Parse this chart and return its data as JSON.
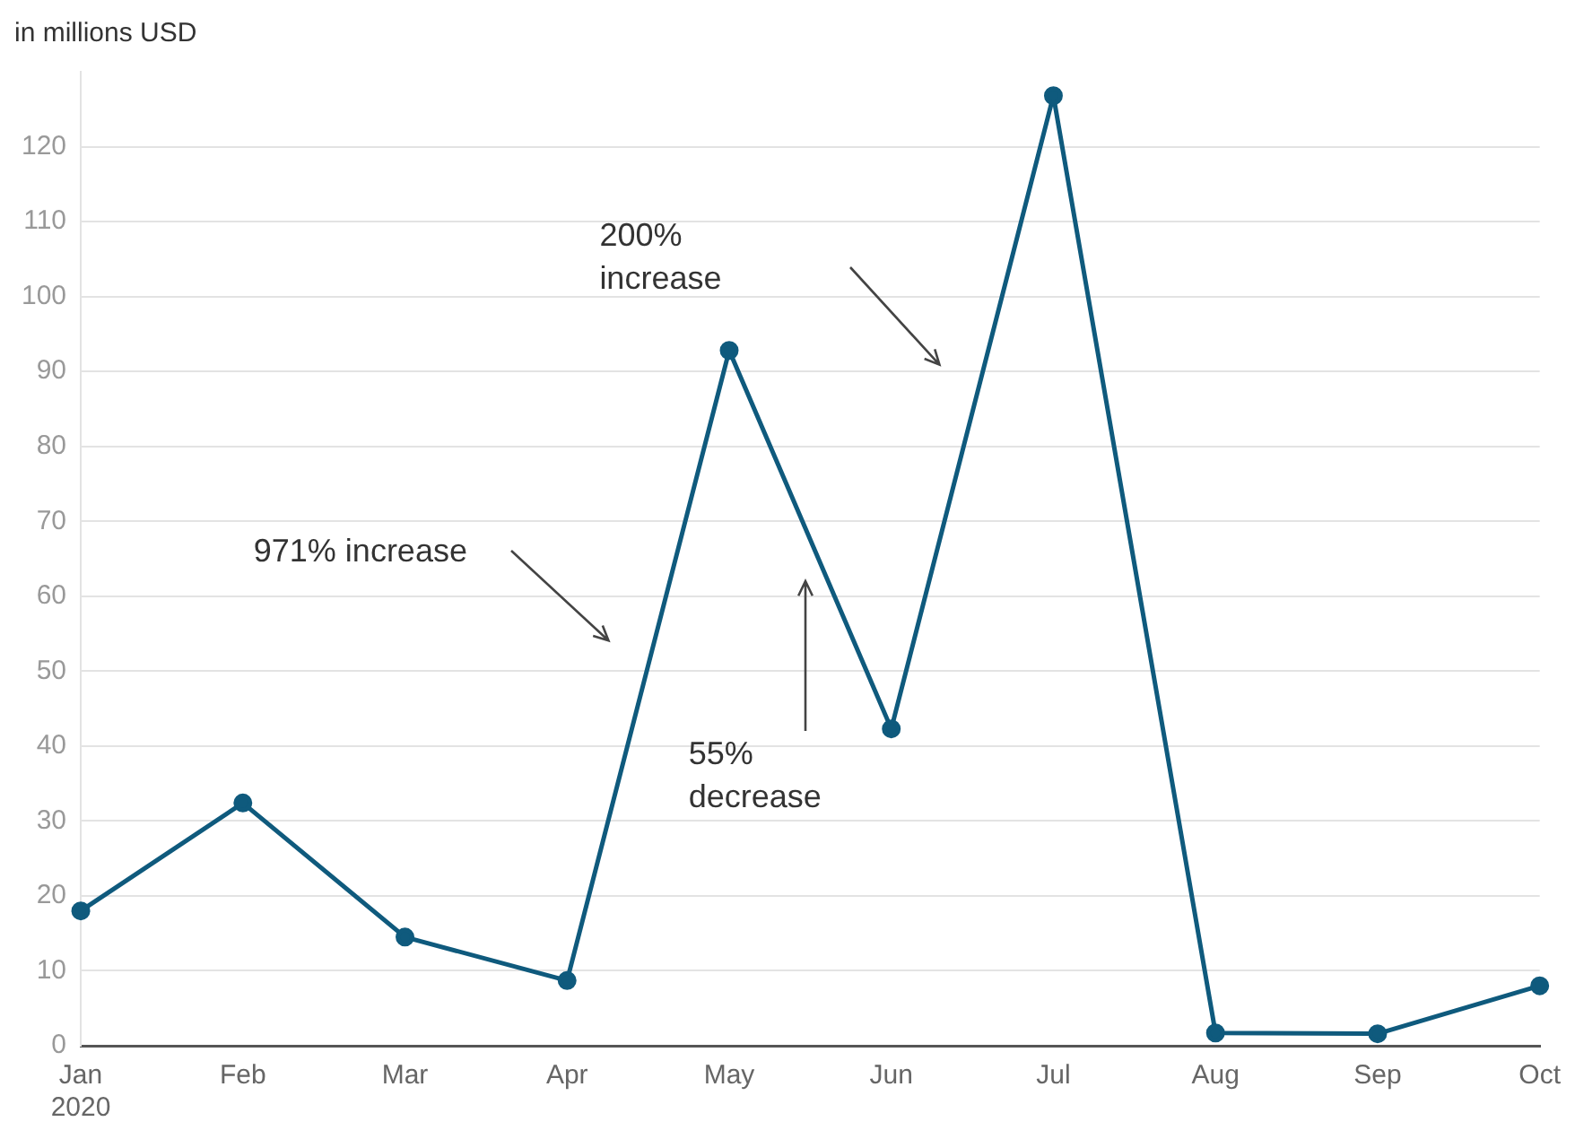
{
  "chart_data": {
    "type": "line",
    "ylabel": "in millions USD",
    "categories": [
      "Jan\n2020",
      "Feb",
      "Mar",
      "Apr",
      "May",
      "Jun",
      "Jul",
      "Aug",
      "Sep",
      "Oct"
    ],
    "series": [
      {
        "color": "#0f5a7d",
        "values": [
          18,
          32.4,
          14.5,
          8.7,
          92.8,
          42.3,
          126.8,
          1.7,
          1.6,
          8
        ]
      }
    ],
    "ylim": [
      0,
      130
    ],
    "yticks": [
      0,
      10,
      20,
      30,
      40,
      50,
      60,
      70,
      80,
      90,
      100,
      110,
      120
    ],
    "grid": "y",
    "legend": false,
    "marker": "circle",
    "line_style": "solid",
    "annotations": [
      "971% increase",
      "200% increase",
      "55% decrease"
    ]
  }
}
